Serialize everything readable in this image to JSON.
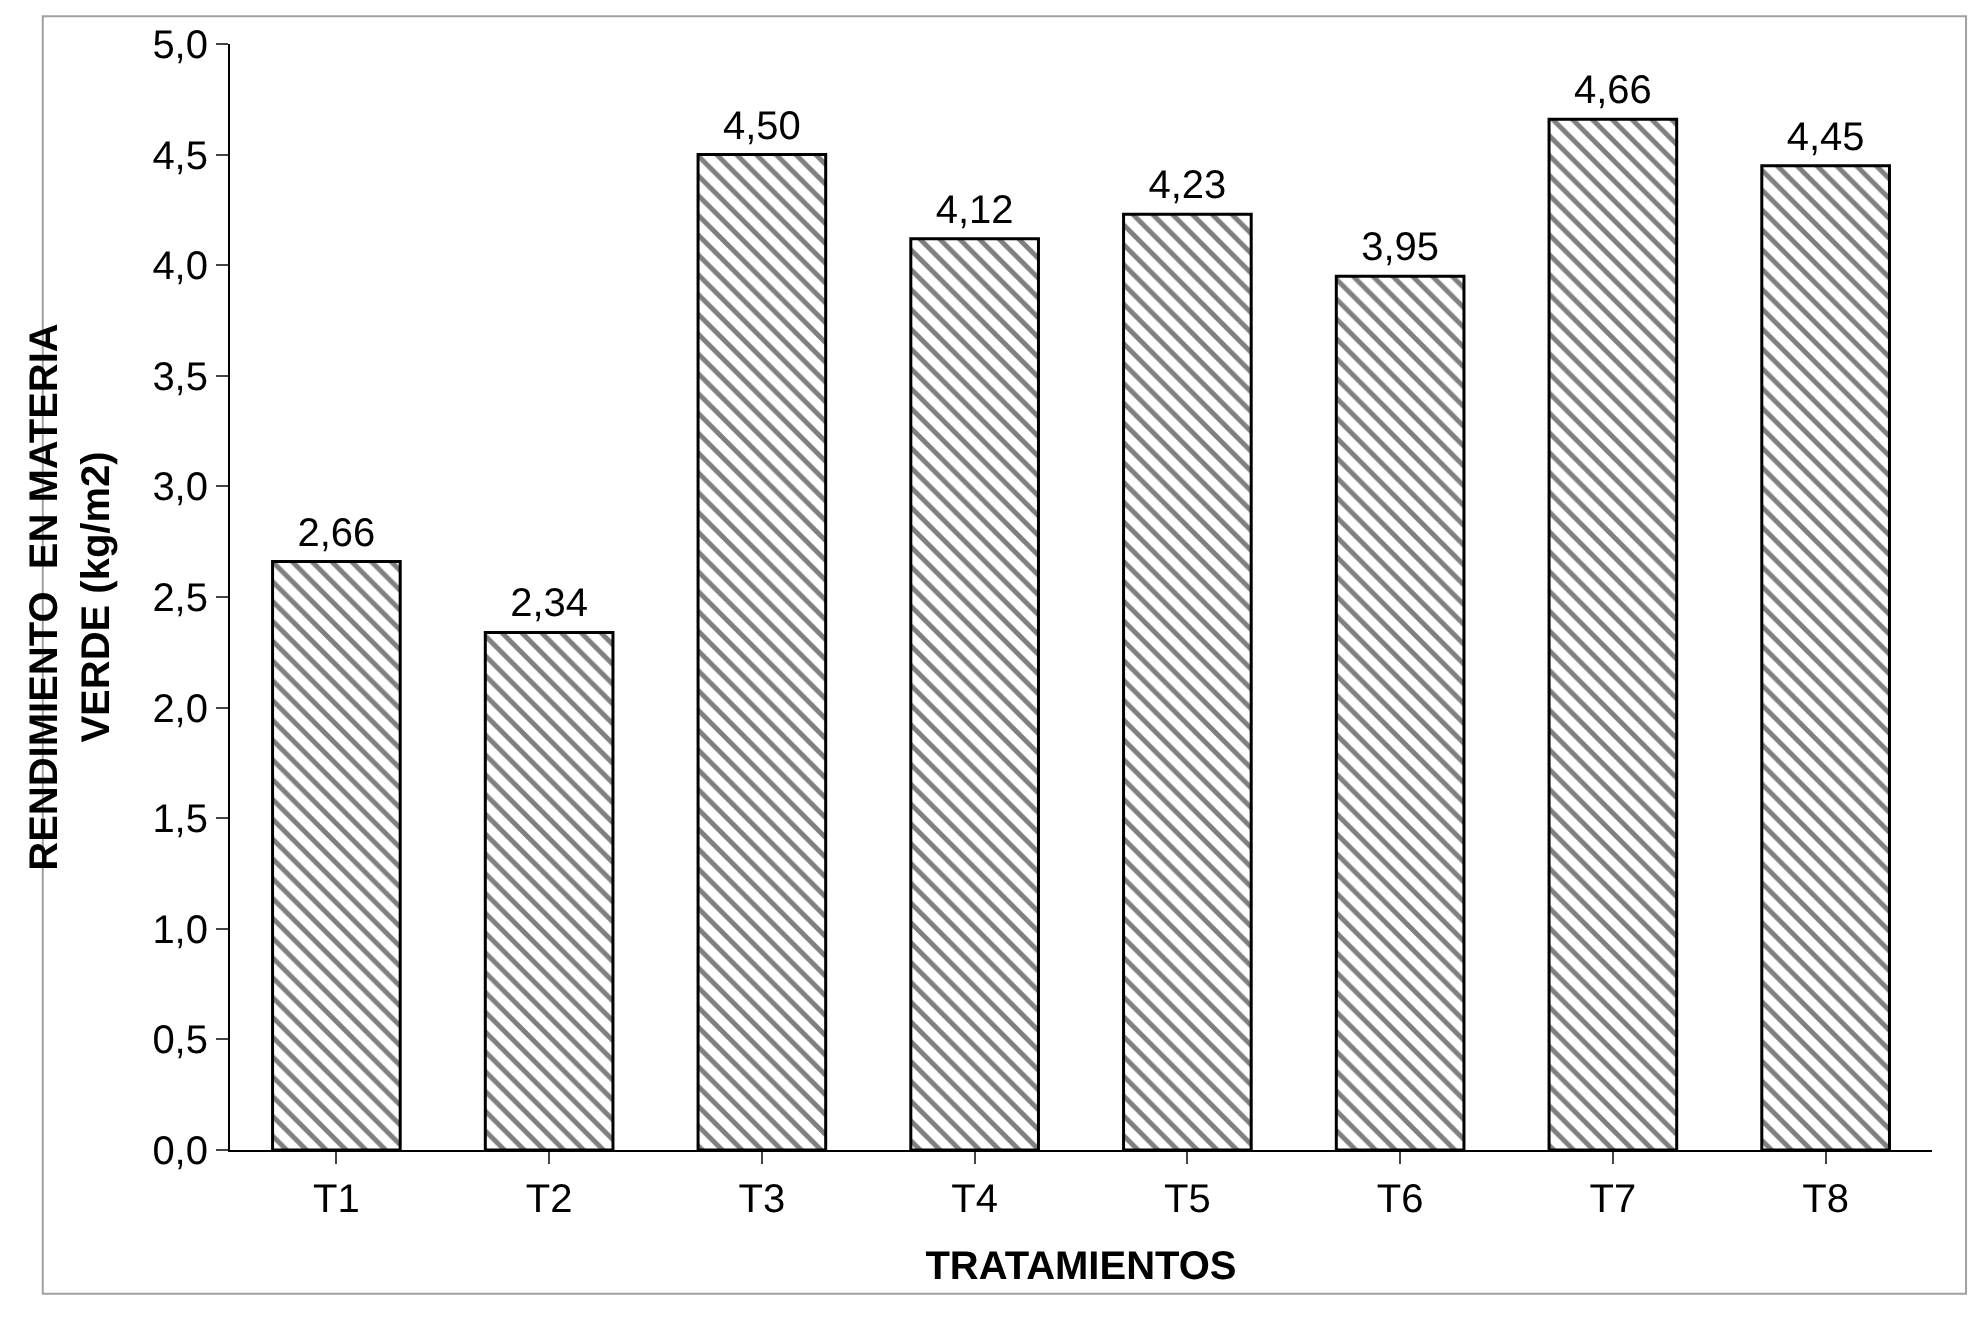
{
  "chart_data": {
    "type": "bar",
    "xlabel": "TRATAMIENTOS",
    "ylabel": "RENDIMIENTO  EN MATERIA\nVERDE (kg/m2)",
    "categories": [
      "T1",
      "T2",
      "T3",
      "T4",
      "T5",
      "T6",
      "T7",
      "T8"
    ],
    "values": [
      2.66,
      2.34,
      4.5,
      4.12,
      4.23,
      3.95,
      4.66,
      4.45
    ],
    "value_labels": [
      "2,66",
      "2,34",
      "4,50",
      "4,12",
      "4,23",
      "3,95",
      "4,66",
      "4,45"
    ],
    "color": "#000000",
    "ylim": [
      0,
      5
    ],
    "yticks": [
      {
        "value": 0,
        "label": "0,0"
      },
      {
        "value": 0.5,
        "label": "0,5"
      },
      {
        "value": 1,
        "label": "1,0"
      },
      {
        "value": 1.5,
        "label": "1,5"
      },
      {
        "value": 2,
        "label": "2,0"
      },
      {
        "value": 2.5,
        "label": "2,5"
      },
      {
        "value": 3,
        "label": "3,0"
      },
      {
        "value": 3.5,
        "label": "3,5"
      },
      {
        "value": 4,
        "label": "4,0"
      },
      {
        "value": 4.5,
        "label": "4,5"
      },
      {
        "value": 5,
        "label": "5,0"
      }
    ],
    "legend": false
  }
}
